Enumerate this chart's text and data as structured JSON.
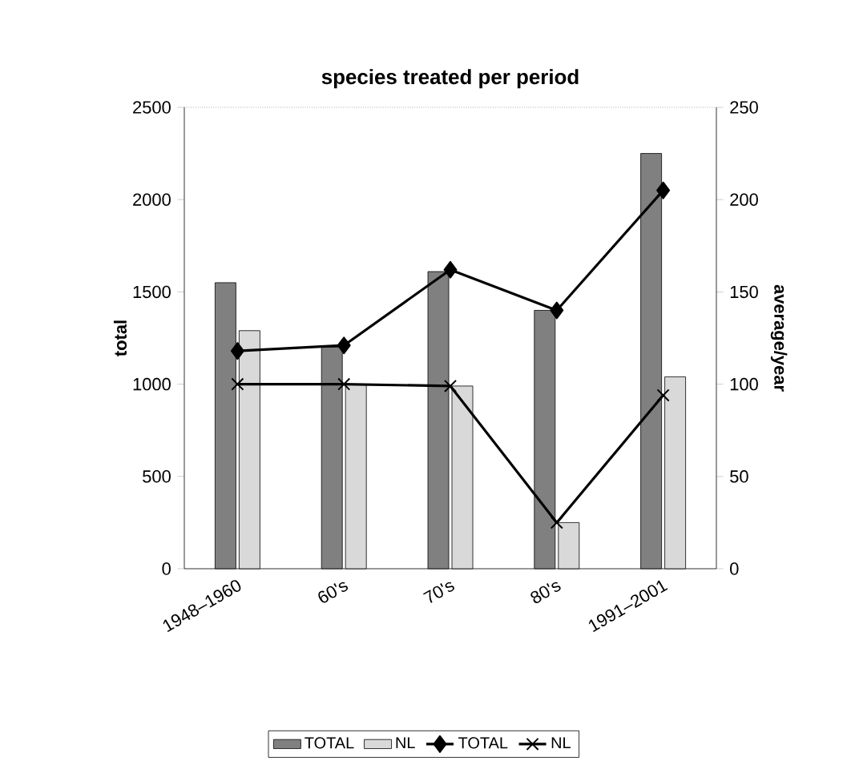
{
  "chart_data": {
    "type": "bar",
    "title": "species treated per period",
    "ylabel": "total",
    "y2label": "average/year",
    "categories": [
      "1948–1960",
      "60's",
      "70's",
      "80's",
      "1991–2001"
    ],
    "series": [
      {
        "name": "TOTAL",
        "color": "#808080",
        "values": [
          1550,
          1200,
          1610,
          1400,
          2250
        ]
      },
      {
        "name": "NL",
        "color": "#d9d9d9",
        "values": [
          1290,
          1000,
          990,
          250,
          1040
        ]
      },
      {
        "name": "TOTAL",
        "type": "line",
        "axis": "y2",
        "marker": "diamond",
        "color": "#000000",
        "values": [
          118,
          121,
          162,
          140,
          205
        ]
      },
      {
        "name": "NL",
        "type": "line",
        "axis": "y2",
        "marker": "cross",
        "color": "#000000",
        "values": [
          100,
          100,
          99,
          25,
          94
        ]
      }
    ],
    "ylim": [
      0,
      2500
    ],
    "yticks": [
      0,
      500,
      1000,
      1500,
      2000,
      2500
    ],
    "y2lim": [
      0,
      250
    ],
    "y2ticks": [
      0,
      50,
      100,
      150,
      200,
      250
    ],
    "grid": false,
    "legend": "bottom"
  }
}
